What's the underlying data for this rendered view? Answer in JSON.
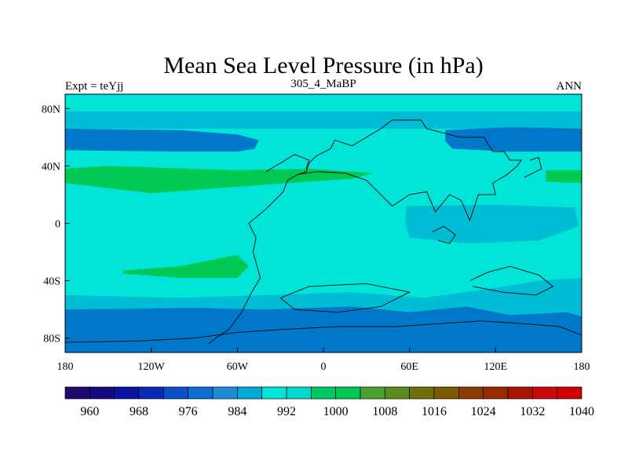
{
  "title": "Mean Sea Level Pressure (in hPa)",
  "left_label": "Expt = teYjj",
  "center_label": "305_4_MaBP",
  "right_label": "ANN",
  "map": {
    "lon_range": [
      -180,
      180
    ],
    "lat_range": [
      -90,
      90
    ],
    "x_ticks": [
      {
        "value": -180,
        "label": "180"
      },
      {
        "value": -120,
        "label": "120W"
      },
      {
        "value": -60,
        "label": "60W"
      },
      {
        "value": 0,
        "label": "0"
      },
      {
        "value": 60,
        "label": "60E"
      },
      {
        "value": 120,
        "label": "120E"
      },
      {
        "value": 180,
        "label": "180"
      }
    ],
    "y_ticks": [
      {
        "value": 80,
        "label": "80N"
      },
      {
        "value": 40,
        "label": "40N"
      },
      {
        "value": 0,
        "label": "0"
      },
      {
        "value": -40,
        "label": "40S"
      },
      {
        "value": -80,
        "label": "80S"
      }
    ],
    "background_level_color": "#00e5d8",
    "regions": [
      {
        "name": "high-pressure-band-north",
        "color": "#00bcd4",
        "points": [
          [
            -180,
            78
          ],
          [
            180,
            78
          ],
          [
            180,
            66
          ],
          [
            -180,
            66
          ]
        ]
      },
      {
        "name": "low-pressure-north-pacific-atlantic",
        "color": "#0077c8",
        "points": [
          [
            -180,
            66
          ],
          [
            -100,
            65
          ],
          [
            -60,
            62
          ],
          [
            -45,
            58
          ],
          [
            -48,
            52
          ],
          [
            -60,
            50
          ],
          [
            -100,
            50
          ],
          [
            -180,
            51
          ]
        ]
      },
      {
        "name": "low-pressure-north-east",
        "color": "#0077c8",
        "points": [
          [
            85,
            65
          ],
          [
            130,
            67
          ],
          [
            180,
            66
          ],
          [
            180,
            50
          ],
          [
            130,
            50
          ],
          [
            90,
            52
          ],
          [
            85,
            57
          ]
        ]
      },
      {
        "name": "high-pressure-subtropics-north",
        "color": "#00c853",
        "points": [
          [
            -180,
            38
          ],
          [
            -150,
            40
          ],
          [
            -60,
            37
          ],
          [
            -10,
            38
          ],
          [
            35,
            35
          ],
          [
            20,
            31
          ],
          [
            -40,
            27
          ],
          [
            -120,
            21
          ],
          [
            -180,
            28
          ]
        ]
      },
      {
        "name": "high-pressure-east",
        "color": "#00c853",
        "points": [
          [
            155,
            37
          ],
          [
            180,
            37
          ],
          [
            180,
            28
          ],
          [
            155,
            29
          ]
        ]
      },
      {
        "name": "equatorial-east-band",
        "color": "#00bcd4",
        "points": [
          [
            58,
            12
          ],
          [
            120,
            13
          ],
          [
            175,
            11
          ],
          [
            178,
            -2
          ],
          [
            150,
            -12
          ],
          [
            100,
            -14
          ],
          [
            60,
            -10
          ],
          [
            57,
            0
          ]
        ]
      },
      {
        "name": "high-pressure-south-atlantic",
        "color": "#00c853",
        "points": [
          [
            -140,
            -33
          ],
          [
            -100,
            -30
          ],
          [
            -60,
            -22
          ],
          [
            -52,
            -30
          ],
          [
            -60,
            -38
          ],
          [
            -100,
            -38
          ],
          [
            -140,
            -35
          ]
        ]
      },
      {
        "name": "south-band-outer",
        "color": "#00bcd4",
        "points": [
          [
            -180,
            -50
          ],
          [
            -100,
            -52
          ],
          [
            -40,
            -50
          ],
          [
            20,
            -48
          ],
          [
            70,
            -52
          ],
          [
            120,
            -45
          ],
          [
            150,
            -40
          ],
          [
            180,
            -38
          ],
          [
            180,
            -90
          ],
          [
            -180,
            -90
          ]
        ]
      },
      {
        "name": "low-pressure-southern-ocean",
        "color": "#0077c8",
        "points": [
          [
            -180,
            -60
          ],
          [
            -90,
            -59
          ],
          [
            -40,
            -60
          ],
          [
            20,
            -58
          ],
          [
            60,
            -62
          ],
          [
            100,
            -58
          ],
          [
            130,
            -64
          ],
          [
            170,
            -62
          ],
          [
            180,
            -65
          ],
          [
            180,
            -90
          ],
          [
            -180,
            -90
          ]
        ]
      }
    ],
    "coastlines": [
      [
        [
          -80,
          -84
        ],
        [
          -75,
          -80
        ],
        [
          -66,
          -74
        ],
        [
          -57,
          -62
        ],
        [
          -50,
          -48
        ],
        [
          -44,
          -38
        ],
        [
          -49,
          -20
        ],
        [
          -47,
          -10
        ],
        [
          -52,
          0
        ],
        [
          -40,
          10
        ],
        [
          -28,
          22
        ],
        [
          -25,
          30
        ],
        [
          -18,
          34
        ],
        [
          -5,
          36
        ],
        [
          15,
          35
        ],
        [
          30,
          30
        ],
        [
          38,
          22
        ],
        [
          48,
          12
        ],
        [
          60,
          20
        ],
        [
          72,
          22
        ],
        [
          78,
          8
        ],
        [
          88,
          20
        ],
        [
          96,
          16
        ],
        [
          102,
          2
        ],
        [
          108,
          20
        ],
        [
          120,
          20
        ],
        [
          118,
          28
        ],
        [
          128,
          34
        ],
        [
          135,
          40
        ],
        [
          138,
          44
        ],
        [
          130,
          44
        ],
        [
          126,
          50
        ],
        [
          118,
          50
        ],
        [
          112,
          60
        ],
        [
          95,
          60
        ],
        [
          72,
          66
        ],
        [
          68,
          72
        ],
        [
          48,
          72
        ],
        [
          40,
          66
        ],
        [
          30,
          60
        ],
        [
          20,
          54
        ],
        [
          8,
          58
        ],
        [
          5,
          52
        ],
        [
          -5,
          47
        ],
        [
          -10,
          42
        ],
        [
          -12,
          36
        ],
        [
          -18,
          34
        ]
      ],
      [
        [
          -180,
          -83
        ],
        [
          -130,
          -82
        ],
        [
          -90,
          -80
        ],
        [
          -60,
          -76
        ],
        [
          -30,
          -74
        ],
        [
          10,
          -72
        ],
        [
          50,
          -72
        ],
        [
          80,
          -70
        ],
        [
          110,
          -68
        ],
        [
          140,
          -70
        ],
        [
          165,
          -72
        ],
        [
          180,
          -78
        ]
      ],
      [
        [
          -30,
          -52
        ],
        [
          -20,
          -60
        ],
        [
          10,
          -62
        ],
        [
          40,
          -58
        ],
        [
          60,
          -48
        ],
        [
          30,
          -42
        ],
        [
          -10,
          -44
        ],
        [
          -30,
          -52
        ]
      ],
      [
        [
          102,
          -40
        ],
        [
          115,
          -34
        ],
        [
          130,
          -30
        ],
        [
          150,
          -36
        ],
        [
          160,
          -44
        ],
        [
          148,
          -50
        ],
        [
          125,
          -48
        ],
        [
          104,
          -44
        ]
      ],
      [
        [
          -40,
          36
        ],
        [
          -30,
          42
        ],
        [
          -20,
          48
        ],
        [
          -10,
          44
        ],
        [
          -12,
          38
        ]
      ],
      [
        [
          76,
          -6
        ],
        [
          84,
          -2
        ],
        [
          92,
          -8
        ],
        [
          88,
          -14
        ],
        [
          80,
          -12
        ]
      ],
      [
        [
          140,
          32
        ],
        [
          152,
          38
        ],
        [
          150,
          46
        ],
        [
          144,
          44
        ]
      ]
    ]
  },
  "colorbar": {
    "colors": [
      "#1e0a6e",
      "#140a82",
      "#0a14a0",
      "#0a2ab4",
      "#0a50c8",
      "#0a6ed2",
      "#1e8cd6",
      "#00a8d8",
      "#00e5d8",
      "#00d8d0",
      "#00c864",
      "#00c853",
      "#4aa032",
      "#5a8c1e",
      "#6e6e0a",
      "#7c5a00",
      "#8c3c00",
      "#9a2800",
      "#a81400",
      "#c80a0a",
      "#d20000"
    ],
    "labels": [
      "960",
      "968",
      "976",
      "984",
      "992",
      "1000",
      "1008",
      "1016",
      "1024",
      "1032",
      "1040"
    ]
  }
}
